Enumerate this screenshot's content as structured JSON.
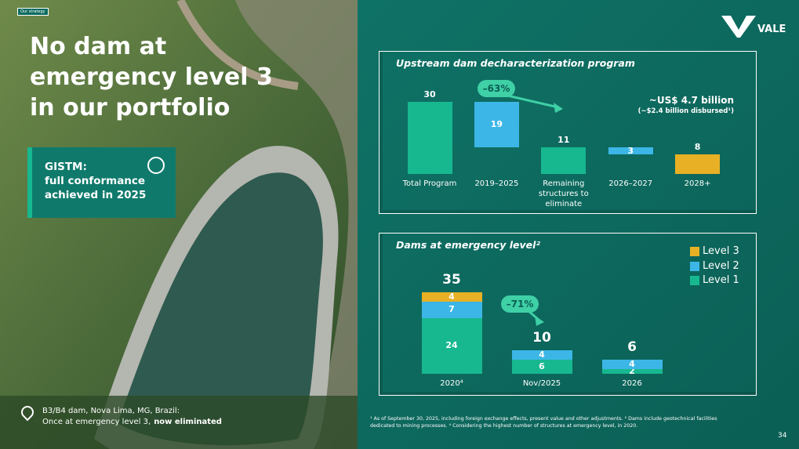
{
  "tag": "Our strategy",
  "title": "No dam at emergency level 3 in our portfolio",
  "logo": "VALE",
  "callout": {
    "lines": [
      "GISTM:",
      "full conformance",
      "achieved in 2025"
    ]
  },
  "caption": {
    "line1": "B3/B4 dam, Nova Lima, MG, Brazil:",
    "line2": "Once at emergency level 3,",
    "line2_bold": "now eliminated"
  },
  "footnote": "¹ As of September 30, 2025, including foreign exchange effects, present value and other adjustments. ² Dams include geotechnical facilities dedicated to mining processes. ⁴ Considering the highest number of structures at emergency level, in 2020.",
  "page_number": "34",
  "chart_data": [
    {
      "type": "waterfall",
      "title": "Upstream dam decharacterization program",
      "categories": [
        "Total Program",
        "2019–2025",
        "Remaining structures to eliminate",
        "2026–2027",
        "2028+"
      ],
      "values": [
        30,
        19,
        11,
        3,
        8
      ],
      "measure": [
        "total",
        "decrease",
        "total",
        "decrease",
        "total"
      ],
      "colors": [
        "#17b890",
        "#3cb6e6",
        "#17b890",
        "#3cb6e6",
        "#e8b024"
      ],
      "annotations": [
        "–63%",
        "~US$ 4.7 billion",
        "(~$2.4 billion disbursed¹)"
      ]
    },
    {
      "type": "stacked_bar",
      "title": "Dams at emergency level²",
      "categories": [
        "2020⁴",
        "Nov/2025",
        "2026"
      ],
      "series": [
        {
          "name": "Level 1",
          "color": "#17b890",
          "values": [
            24,
            6,
            2
          ]
        },
        {
          "name": "Level 2",
          "color": "#3cb6e6",
          "values": [
            7,
            4,
            4
          ]
        },
        {
          "name": "Level 3",
          "color": "#e8b024",
          "values": [
            4,
            null,
            null
          ]
        }
      ],
      "totals": [
        35,
        10,
        6
      ],
      "annotation": "–71%",
      "legend": "top-right"
    }
  ]
}
